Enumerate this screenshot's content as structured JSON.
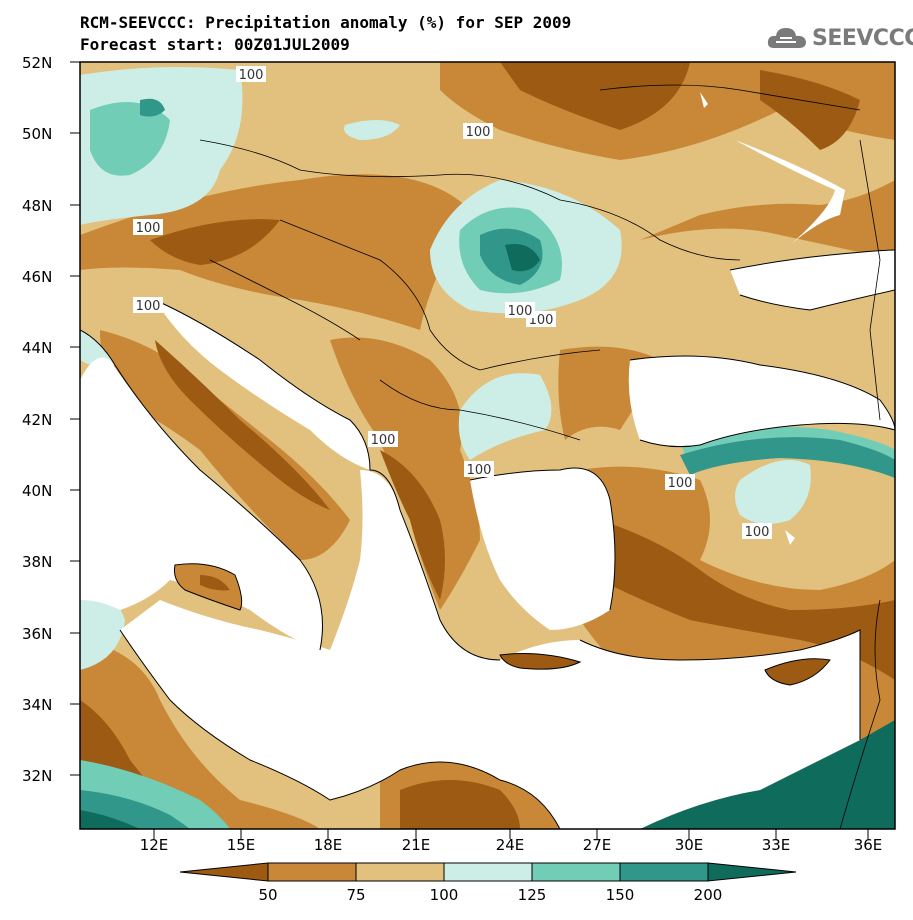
{
  "title": {
    "line1": "RCM-SEEVCCC: Precipitation anomaly (%) for SEP 2009",
    "line2": "Forecast start: 00Z01JUL2009"
  },
  "logo": {
    "text": "SEEVCCC",
    "icon": "cloud-icon"
  },
  "map": {
    "lat_labels": [
      "52N",
      "50N",
      "48N",
      "46N",
      "44N",
      "42N",
      "40N",
      "38N",
      "36N",
      "34N",
      "32N"
    ],
    "lon_labels": [
      "12E",
      "15E",
      "18E",
      "21E",
      "24E",
      "27E",
      "30E",
      "33E",
      "36E"
    ],
    "contour_labels": [
      "100",
      "100",
      "100",
      "100",
      "100",
      "100",
      "100",
      "100",
      "100",
      "100"
    ]
  },
  "colorbar": {
    "labels": [
      "50",
      "75",
      "100",
      "125",
      "150",
      "200"
    ],
    "colors": [
      "#9c5a12",
      "#c88838",
      "#e2c07e",
      "#cdeee6",
      "#72cdb7",
      "#31978a",
      "#0f6b5c"
    ]
  }
}
